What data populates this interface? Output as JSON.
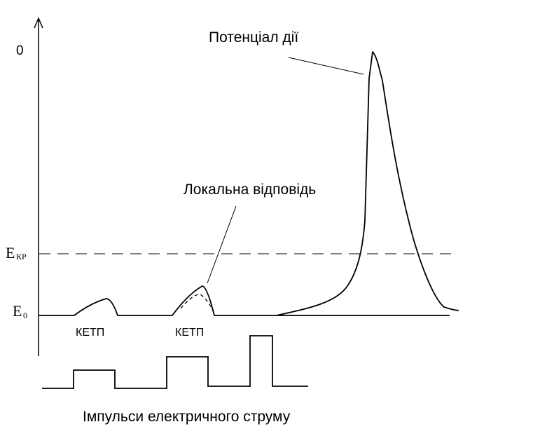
{
  "labels": {
    "zero": "0",
    "e_kr_main": "E",
    "e_kr_sub": "КР",
    "e0_main": "E",
    "e0_sub": "0",
    "action_potential": "Потенціал дії",
    "local_response": "Локальна відповідь",
    "ketp_1": "КЕТП",
    "ketp_2": "КЕТП",
    "impulses": "Імпульси електричного струму"
  }
}
